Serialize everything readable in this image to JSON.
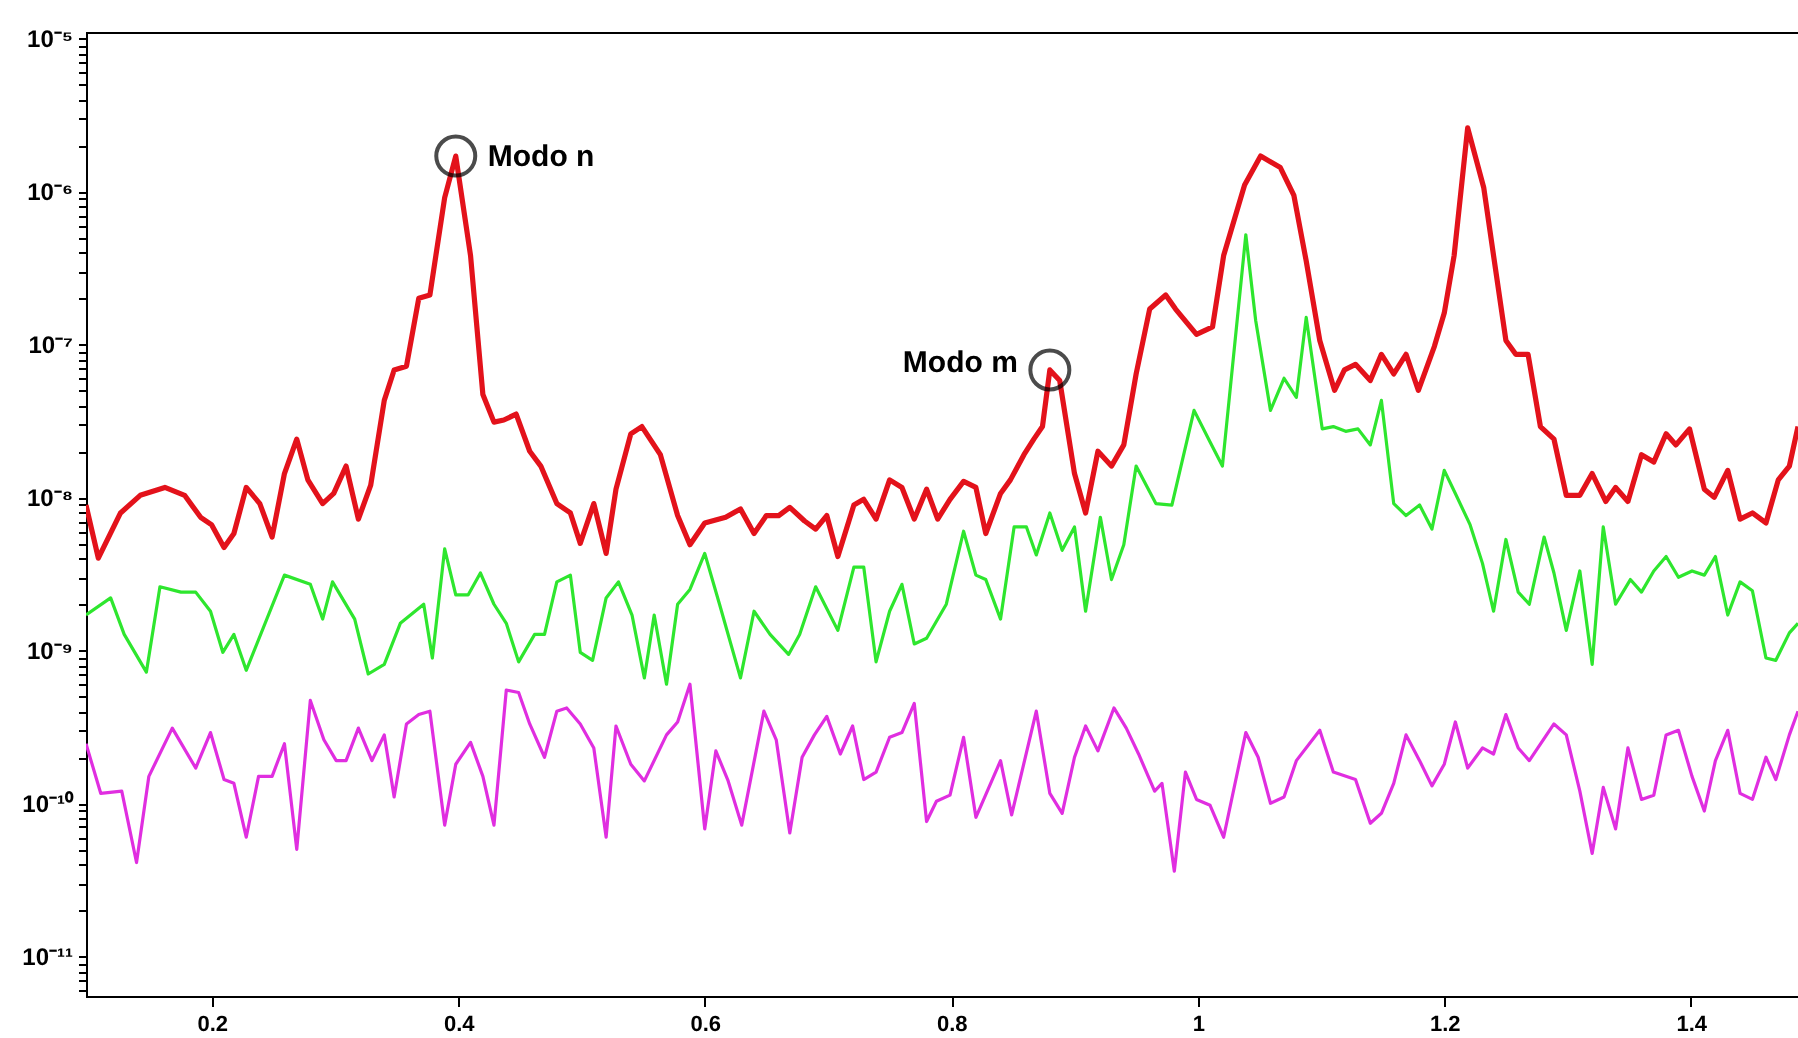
{
  "chart_data": {
    "type": "line",
    "xlim": [
      0.098,
      1.487
    ],
    "xticks": [
      0.2,
      0.4,
      0.6,
      0.8,
      1,
      1.2,
      1.4
    ],
    "log": true,
    "ylim": [
      5.5e-12,
      1.1e-05
    ],
    "yticks": [
      {
        "value": 1e-11,
        "label": "10⁻¹¹"
      },
      {
        "value": 1e-10,
        "label": "10⁻¹⁰"
      },
      {
        "value": 1e-09,
        "label": "10⁻⁹"
      },
      {
        "value": 1e-08,
        "label": "10⁻⁸"
      },
      {
        "value": 1e-07,
        "label": "10⁻⁷"
      },
      {
        "value": 1e-06,
        "label": "10⁻⁶"
      },
      {
        "value": 1e-05,
        "label": "10⁻⁵"
      },
      {
        "value": 6e-12,
        "label": null
      },
      {
        "value": 7e-12,
        "label": null
      },
      {
        "value": 8e-12,
        "label": null
      },
      {
        "value": 9e-12,
        "label": null
      },
      {
        "value": 2e-11,
        "label": null
      },
      {
        "value": 3e-11,
        "label": null
      },
      {
        "value": 4e-11,
        "label": null
      },
      {
        "value": 5e-11,
        "label": null
      },
      {
        "value": 6e-11,
        "label": null
      },
      {
        "value": 7e-11,
        "label": null
      },
      {
        "value": 8e-11,
        "label": null
      },
      {
        "value": 9e-11,
        "label": null
      },
      {
        "value": 2e-10,
        "label": null
      },
      {
        "value": 3e-10,
        "label": null
      },
      {
        "value": 4e-10,
        "label": null
      },
      {
        "value": 5e-10,
        "label": null
      },
      {
        "value": 6e-10,
        "label": null
      },
      {
        "value": 7e-10,
        "label": null
      },
      {
        "value": 8e-10,
        "label": null
      },
      {
        "value": 9e-10,
        "label": null
      },
      {
        "value": 2e-09,
        "label": null
      },
      {
        "value": 3e-09,
        "label": null
      },
      {
        "value": 4e-09,
        "label": null
      },
      {
        "value": 5e-09,
        "label": null
      },
      {
        "value": 6e-09,
        "label": null
      },
      {
        "value": 7e-09,
        "label": null
      },
      {
        "value": 8e-09,
        "label": null
      },
      {
        "value": 9e-09,
        "label": null
      },
      {
        "value": 2e-08,
        "label": null
      },
      {
        "value": 3e-08,
        "label": null
      },
      {
        "value": 4e-08,
        "label": null
      },
      {
        "value": 5e-08,
        "label": null
      },
      {
        "value": 6e-08,
        "label": null
      },
      {
        "value": 7e-08,
        "label": null
      },
      {
        "value": 8e-08,
        "label": null
      },
      {
        "value": 9e-08,
        "label": null
      },
      {
        "value": 2e-07,
        "label": null
      },
      {
        "value": 3e-07,
        "label": null
      },
      {
        "value": 4e-07,
        "label": null
      },
      {
        "value": 5e-07,
        "label": null
      },
      {
        "value": 6e-07,
        "label": null
      },
      {
        "value": 7e-07,
        "label": null
      },
      {
        "value": 8e-07,
        "label": null
      },
      {
        "value": 9e-07,
        "label": null
      },
      {
        "value": 2e-06,
        "label": null
      },
      {
        "value": 3e-06,
        "label": null
      },
      {
        "value": 4e-06,
        "label": null
      },
      {
        "value": 5e-06,
        "label": null
      },
      {
        "value": 6e-06,
        "label": null
      },
      {
        "value": 7e-06,
        "label": null
      },
      {
        "value": 8e-06,
        "label": null
      },
      {
        "value": 9e-06,
        "label": null
      }
    ],
    "series": [
      {
        "color": "#e3121b",
        "x": [
          0.098,
          0.108,
          0.126,
          0.142,
          0.162,
          0.178,
          0.191,
          0.2,
          0.21,
          0.218,
          0.228,
          0.239,
          0.249,
          0.259,
          0.269,
          0.278,
          0.29,
          0.299,
          0.309,
          0.319,
          0.329,
          0.34,
          0.348,
          0.358,
          0.368,
          0.377,
          0.389,
          0.398,
          0.41,
          0.42,
          0.429,
          0.437,
          0.447,
          0.458,
          0.467,
          0.48,
          0.491,
          0.499,
          0.51,
          0.52,
          0.528,
          0.54,
          0.549,
          0.564,
          0.578,
          0.588,
          0.6,
          0.617,
          0.629,
          0.64,
          0.65,
          0.66,
          0.669,
          0.681,
          0.69,
          0.699,
          0.708,
          0.721,
          0.729,
          0.739,
          0.75,
          0.76,
          0.77,
          0.78,
          0.789,
          0.799,
          0.81,
          0.82,
          0.828,
          0.84,
          0.848,
          0.859,
          0.867,
          0.874,
          0.88,
          0.888,
          0.9,
          0.909,
          0.919,
          0.93,
          0.94,
          0.95,
          0.961,
          0.974,
          0.982,
          0.999,
          1.012,
          1.021,
          1.038,
          1.051,
          1.067,
          1.078,
          1.088,
          1.099,
          1.111,
          1.119,
          1.128,
          1.14,
          1.149,
          1.159,
          1.169,
          1.179,
          1.192,
          1.2,
          1.208,
          1.219,
          1.232,
          1.24,
          1.25,
          1.258,
          1.268,
          1.278,
          1.289,
          1.299,
          1.31,
          1.32,
          1.331,
          1.339,
          1.349,
          1.36,
          1.37,
          1.38,
          1.388,
          1.399,
          1.411,
          1.419,
          1.43,
          1.44,
          1.45,
          1.461,
          1.471,
          1.48,
          1.487
        ],
        "values": [
          8.9e-09,
          4e-09,
          7.9e-09,
          1.03e-08,
          1.16e-08,
          1.03e-08,
          7.4e-09,
          6.6e-09,
          4.7e-09,
          5.8e-09,
          1.16e-08,
          9.1e-09,
          5.5e-09,
          1.43e-08,
          2.4e-08,
          1.3e-08,
          9.1e-09,
          1.06e-08,
          1.6e-08,
          7.2e-09,
          1.2e-08,
          4.3e-08,
          6.8e-08,
          7.2e-08,
          2e-07,
          2.1e-07,
          9.1e-07,
          1.7e-06,
          3.8e-07,
          4.7e-08,
          3.1e-08,
          3.2e-08,
          3.5e-08,
          2e-08,
          1.6e-08,
          9.1e-09,
          7.9e-09,
          5e-09,
          9.1e-09,
          4.3e-09,
          1.13e-08,
          2.6e-08,
          2.9e-08,
          1.9e-08,
          7.6e-09,
          4.9e-09,
          6.8e-09,
          7.4e-09,
          8.4e-09,
          5.8e-09,
          7.6e-09,
          7.6e-09,
          8.6e-09,
          7e-09,
          6.2e-09,
          7.6e-09,
          4.1e-09,
          8.9e-09,
          9.7e-09,
          7.2e-09,
          1.3e-08,
          1.16e-08,
          7.2e-09,
          1.13e-08,
          7.2e-09,
          9.7e-09,
          1.27e-08,
          1.16e-08,
          5.8e-09,
          1.06e-08,
          1.3e-08,
          1.9e-08,
          2.4e-08,
          2.9e-08,
          6.8e-08,
          5.8e-08,
          1.43e-08,
          7.9e-09,
          2e-08,
          1.6e-08,
          2.2e-08,
          6.4e-08,
          1.7e-07,
          2.1e-07,
          1.7e-07,
          1.16e-07,
          1.3e-07,
          3.8e-07,
          1.1e-06,
          1.7e-06,
          1.43e-06,
          9.4e-07,
          3.5e-07,
          1.06e-07,
          5e-08,
          6.8e-08,
          7.4e-08,
          5.8e-08,
          8.6e-08,
          6.4e-08,
          8.6e-08,
          5e-08,
          9.7e-08,
          1.6e-07,
          3.8e-07,
          2.6e-06,
          1.06e-06,
          3.8e-07,
          1.06e-07,
          8.6e-08,
          8.6e-08,
          2.9e-08,
          2.4e-08,
          1.03e-08,
          1.03e-08,
          1.43e-08,
          9.4e-09,
          1.16e-08,
          9.4e-09,
          1.9e-08,
          1.7e-08,
          2.6e-08,
          2.2e-08,
          2.8e-08,
          1.13e-08,
          1e-08,
          1.5e-08,
          7.2e-09,
          7.9e-09,
          6.8e-09,
          1.3e-08,
          1.6e-08,
          2.9e-08
        ]
      },
      {
        "color": "#2ee62e",
        "x": [
          0.098,
          0.118,
          0.129,
          0.147,
          0.158,
          0.175,
          0.187,
          0.199,
          0.209,
          0.218,
          0.228,
          0.259,
          0.28,
          0.29,
          0.298,
          0.316,
          0.327,
          0.34,
          0.353,
          0.372,
          0.379,
          0.389,
          0.398,
          0.408,
          0.418,
          0.429,
          0.439,
          0.449,
          0.462,
          0.47,
          0.48,
          0.491,
          0.499,
          0.509,
          0.52,
          0.53,
          0.541,
          0.551,
          0.559,
          0.569,
          0.578,
          0.588,
          0.6,
          0.612,
          0.629,
          0.64,
          0.653,
          0.668,
          0.677,
          0.69,
          0.708,
          0.721,
          0.729,
          0.739,
          0.75,
          0.76,
          0.77,
          0.78,
          0.796,
          0.81,
          0.82,
          0.828,
          0.84,
          0.851,
          0.861,
          0.869,
          0.88,
          0.89,
          0.9,
          0.909,
          0.921,
          0.93,
          0.94,
          0.95,
          0.966,
          0.979,
          0.997,
          1.01,
          1.02,
          1.039,
          1.047,
          1.059,
          1.07,
          1.08,
          1.088,
          1.101,
          1.11,
          1.12,
          1.13,
          1.14,
          1.149,
          1.159,
          1.169,
          1.18,
          1.19,
          1.2,
          1.209,
          1.221,
          1.231,
          1.24,
          1.25,
          1.26,
          1.269,
          1.281,
          1.289,
          1.299,
          1.31,
          1.32,
          1.329,
          1.339,
          1.351,
          1.36,
          1.37,
          1.38,
          1.39,
          1.401,
          1.411,
          1.42,
          1.43,
          1.44,
          1.45,
          1.461,
          1.469,
          1.48,
          1.487
        ],
        "values": [
          1.7e-09,
          2.2e-09,
          1.27e-09,
          7.2e-10,
          2.6e-09,
          2.4e-09,
          2.4e-09,
          1.8e-09,
          9.7e-10,
          1.27e-09,
          7.4e-10,
          3.1e-09,
          2.7e-09,
          1.6e-09,
          2.8e-09,
          1.6e-09,
          7e-10,
          8.1e-10,
          1.5e-09,
          2e-09,
          8.9e-10,
          4.6e-09,
          2.3e-09,
          2.3e-09,
          3.2e-09,
          2e-09,
          1.5e-09,
          8.4e-10,
          1.27e-09,
          1.27e-09,
          2.8e-09,
          3.1e-09,
          9.7e-10,
          8.6e-10,
          2.2e-09,
          2.8e-09,
          1.7e-09,
          6.6e-10,
          1.7e-09,
          6e-10,
          2e-09,
          2.5e-09,
          4.3e-09,
          2e-09,
          6.6e-10,
          1.8e-09,
          1.27e-09,
          9.4e-10,
          1.27e-09,
          2.6e-09,
          1.35e-09,
          3.5e-09,
          3.5e-09,
          8.4e-10,
          1.8e-09,
          2.7e-09,
          1.1e-09,
          1.2e-09,
          2e-09,
          6e-09,
          3.1e-09,
          2.9e-09,
          1.6e-09,
          6.4e-09,
          6.4e-09,
          4.2e-09,
          7.9e-09,
          4.5e-09,
          6.4e-09,
          1.8e-09,
          7.4e-09,
          2.9e-09,
          4.9e-09,
          1.6e-08,
          9.1e-09,
          8.9e-09,
          3.7e-08,
          2.3e-08,
          1.6e-08,
          5.2e-07,
          1.43e-07,
          3.7e-08,
          6e-08,
          4.5e-08,
          1.5e-07,
          2.8e-08,
          2.9e-08,
          2.7e-08,
          2.8e-08,
          2.2e-08,
          4.3e-08,
          9.1e-09,
          7.6e-09,
          8.9e-09,
          6.2e-09,
          1.5e-08,
          1.06e-08,
          6.6e-09,
          3.7e-09,
          1.8e-09,
          5.3e-09,
          2.4e-09,
          2e-09,
          5.5e-09,
          3.2e-09,
          1.35e-09,
          3.3e-09,
          8.1e-10,
          6.4e-09,
          2e-09,
          2.9e-09,
          2.4e-09,
          3.3e-09,
          4.1e-09,
          3e-09,
          3.3e-09,
          3.1e-09,
          4.1e-09,
          1.7e-09,
          2.8e-09,
          2.45e-09,
          8.9e-10,
          8.6e-10,
          1.3e-09,
          1.5e-09
        ]
      },
      {
        "color": "#e02ee0",
        "x": [
          0.098,
          0.11,
          0.127,
          0.139,
          0.149,
          0.168,
          0.187,
          0.199,
          0.21,
          0.218,
          0.228,
          0.238,
          0.249,
          0.259,
          0.269,
          0.28,
          0.291,
          0.301,
          0.309,
          0.319,
          0.33,
          0.34,
          0.348,
          0.358,
          0.368,
          0.377,
          0.389,
          0.398,
          0.41,
          0.42,
          0.429,
          0.439,
          0.449,
          0.458,
          0.47,
          0.48,
          0.488,
          0.499,
          0.51,
          0.52,
          0.528,
          0.54,
          0.551,
          0.569,
          0.578,
          0.588,
          0.6,
          0.609,
          0.619,
          0.63,
          0.648,
          0.658,
          0.669,
          0.679,
          0.689,
          0.699,
          0.71,
          0.72,
          0.729,
          0.739,
          0.75,
          0.76,
          0.77,
          0.78,
          0.788,
          0.799,
          0.81,
          0.82,
          0.84,
          0.849,
          0.869,
          0.88,
          0.89,
          0.9,
          0.909,
          0.919,
          0.932,
          0.942,
          0.952,
          0.965,
          0.971,
          0.981,
          0.99,
          0.999,
          1.01,
          1.021,
          1.039,
          1.049,
          1.059,
          1.07,
          1.08,
          1.099,
          1.11,
          1.128,
          1.14,
          1.149,
          1.159,
          1.169,
          1.18,
          1.19,
          1.2,
          1.209,
          1.219,
          1.231,
          1.24,
          1.25,
          1.26,
          1.269,
          1.289,
          1.299,
          1.31,
          1.32,
          1.329,
          1.339,
          1.349,
          1.36,
          1.37,
          1.38,
          1.39,
          1.401,
          1.411,
          1.42,
          1.43,
          1.44,
          1.45,
          1.461,
          1.469,
          1.48,
          1.487
        ],
        "values": [
          2.45e-10,
          1.16e-10,
          1.2e-10,
          4.1e-11,
          1.5e-10,
          3.1e-10,
          1.7e-10,
          2.9e-10,
          1.43e-10,
          1.35e-10,
          6e-11,
          1.5e-10,
          1.5e-10,
          2.45e-10,
          5e-11,
          4.7e-10,
          2.6e-10,
          1.9e-10,
          1.9e-10,
          3.1e-10,
          1.9e-10,
          2.8e-10,
          1.1e-10,
          3.3e-10,
          3.8e-10,
          4e-10,
          7.2e-11,
          1.8e-10,
          2.5e-10,
          1.5e-10,
          7.2e-11,
          5.5e-10,
          5.3e-10,
          3.3e-10,
          2e-10,
          4e-10,
          4.2e-10,
          3.3e-10,
          2.3e-10,
          6e-11,
          3.2e-10,
          1.8e-10,
          1.4e-10,
          2.8e-10,
          3.4e-10,
          6e-10,
          6.8e-11,
          2.2e-10,
          1.4e-10,
          7.2e-11,
          4e-10,
          2.6e-10,
          6.4e-11,
          2e-10,
          2.8e-10,
          3.7e-10,
          2.1e-10,
          3.2e-10,
          1.43e-10,
          1.6e-10,
          2.7e-10,
          2.9e-10,
          4.5e-10,
          7.6e-11,
          1.03e-10,
          1.13e-10,
          2.7e-10,
          8.1e-11,
          1.9e-10,
          8.4e-11,
          4e-10,
          1.16e-10,
          8.6e-11,
          2e-10,
          3.2e-10,
          2.2e-10,
          4.2e-10,
          3.1e-10,
          2.1e-10,
          1.2e-10,
          1.35e-10,
          3.6e-11,
          1.6e-10,
          1.06e-10,
          9.7e-11,
          6e-11,
          2.9e-10,
          2e-10,
          1e-10,
          1.1e-10,
          1.9e-10,
          3e-10,
          1.6e-10,
          1.43e-10,
          7.4e-11,
          8.6e-11,
          1.35e-10,
          2.8e-10,
          1.9e-10,
          1.3e-10,
          1.8e-10,
          3.4e-10,
          1.7e-10,
          2.3e-10,
          2.1e-10,
          3.8e-10,
          2.3e-10,
          1.9e-10,
          3.3e-10,
          2.8e-10,
          1.2e-10,
          4.7e-11,
          1.27e-10,
          6.8e-11,
          2.3e-10,
          1.06e-10,
          1.13e-10,
          2.8e-10,
          3e-10,
          1.5e-10,
          8.9e-11,
          1.9e-10,
          3e-10,
          1.16e-10,
          1.06e-10,
          2e-10,
          1.43e-10,
          2.8e-10,
          4e-10
        ]
      }
    ],
    "annotations": [
      {
        "text": "Modo n",
        "x": 0.398,
        "y": 1.7e-06
      },
      {
        "text": "Modo m",
        "x": 0.88,
        "y": 6.8e-08
      }
    ]
  }
}
